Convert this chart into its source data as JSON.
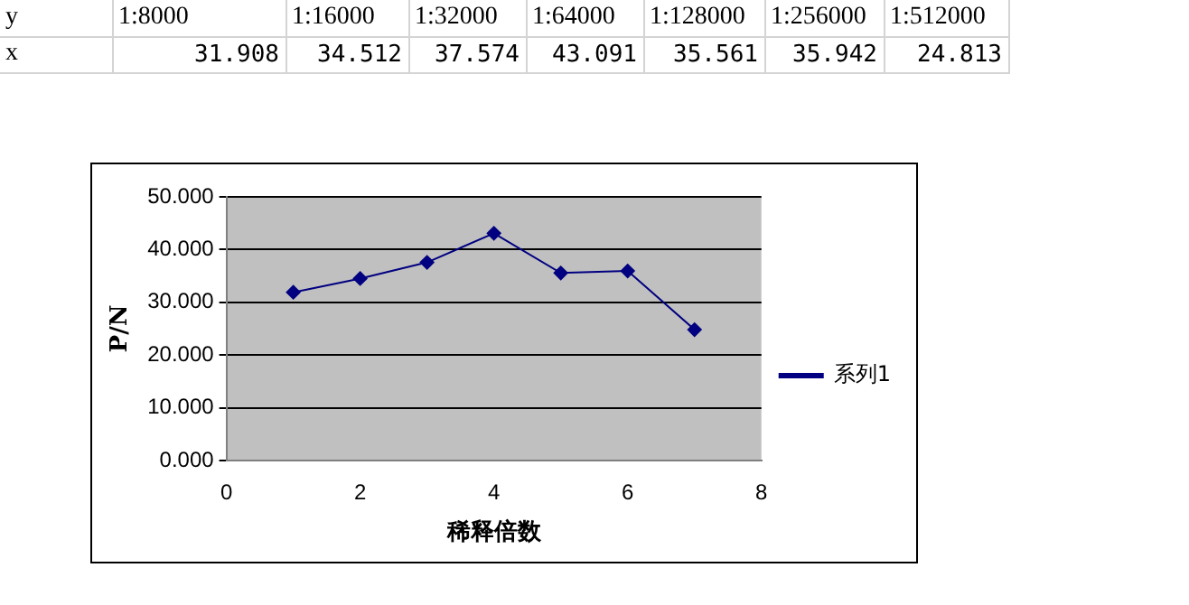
{
  "chart_data": {
    "type": "line",
    "xlabel": "稀释倍数",
    "ylabel": "P/N",
    "x": [
      1,
      2,
      3,
      4,
      5,
      6,
      7
    ],
    "series": [
      {
        "name": "系列1",
        "color": "#000080",
        "values": [
          31.908,
          34.512,
          37.574,
          43.091,
          35.561,
          35.942,
          24.813
        ]
      }
    ],
    "annotations": [
      "y",
      "x",
      "1:8000",
      "1:16000",
      "1:32000",
      "1:64000",
      "1:128000",
      "1:256000",
      "1:512000",
      "31.908",
      "34.512",
      "37.574",
      "43.091",
      "35.561",
      "35.942",
      "24.813"
    ],
    "xlim": [
      0,
      8
    ],
    "xticks": [
      0,
      2,
      4,
      6,
      8
    ],
    "ylim": [
      0,
      50
    ],
    "yticks": [
      {
        "value": 0,
        "label": "0.000"
      },
      {
        "value": 10,
        "label": "10.000"
      },
      {
        "value": 20,
        "label": "20.000"
      },
      {
        "value": 30,
        "label": "30.000"
      },
      {
        "value": 40,
        "label": "40.000"
      },
      {
        "value": 50,
        "label": "50.000"
      }
    ],
    "grid": "y",
    "legend": "right",
    "marker": "diamond",
    "line_style": "solid"
  }
}
